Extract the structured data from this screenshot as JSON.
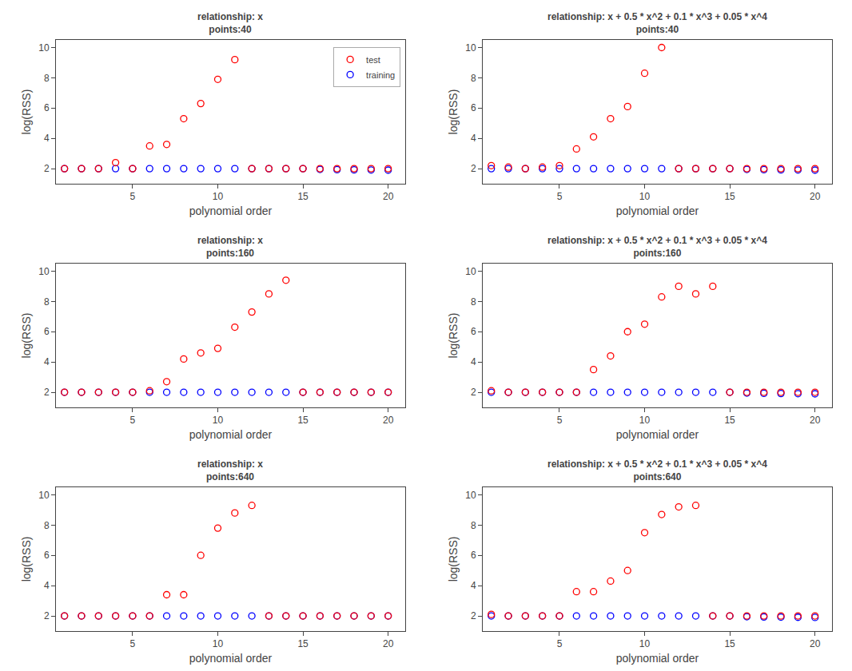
{
  "chart_data": [
    {
      "type": "scatter",
      "title": "relationship: x\npoints:40",
      "xlabel": "polynomial order",
      "ylabel": "log(RSS)",
      "x": [
        1,
        2,
        3,
        4,
        5,
        6,
        7,
        8,
        9,
        10,
        11,
        12,
        13,
        14,
        15,
        16,
        17,
        18,
        19,
        20
      ],
      "series": [
        {
          "name": "training",
          "color": "#0000FF",
          "marker": "circle-open",
          "values": [
            2.0,
            2.0,
            2.0,
            2.0,
            2.0,
            2.0,
            2.0,
            2.0,
            2.0,
            2.0,
            2.0,
            2.0,
            2.0,
            2.0,
            2.0,
            1.95,
            1.93,
            1.92,
            1.91,
            1.9
          ]
        },
        {
          "name": "test",
          "color": "#FF0000",
          "marker": "circle-open",
          "values": [
            2.0,
            2.0,
            2.0,
            2.4,
            2.0,
            3.5,
            3.6,
            5.3,
            6.3,
            7.9,
            9.2,
            2.0,
            2.0,
            2.0,
            2.0,
            2.0,
            2.0,
            2.0,
            2.0,
            2.0
          ]
        }
      ],
      "xlim": [
        0.5,
        21.0
      ],
      "ylim": [
        1.0,
        10.5
      ],
      "xticks": [
        5,
        10,
        15,
        20
      ],
      "yticks": [
        2,
        4,
        6,
        8,
        10
      ],
      "grid": false,
      "legend": "upper right"
    },
    {
      "type": "scatter",
      "title": "relationship: x + 0.5 * x^2 + 0.1 * x^3 + 0.05 * x^4\npoints:40",
      "xlabel": "polynomial order",
      "ylabel": "log(RSS)",
      "x": [
        1,
        2,
        3,
        4,
        5,
        6,
        7,
        8,
        9,
        10,
        11,
        12,
        13,
        14,
        15,
        16,
        17,
        18,
        19,
        20
      ],
      "series": [
        {
          "name": "training",
          "color": "#0000FF",
          "marker": "circle-open",
          "values": [
            2.0,
            2.0,
            2.0,
            2.0,
            2.0,
            2.0,
            2.0,
            2.0,
            2.0,
            2.0,
            2.0,
            2.0,
            2.0,
            2.0,
            2.0,
            1.95,
            1.93,
            1.92,
            1.91,
            1.9
          ]
        },
        {
          "name": "test",
          "color": "#FF0000",
          "marker": "circle-open",
          "values": [
            2.2,
            2.1,
            2.0,
            2.1,
            2.2,
            3.3,
            4.1,
            5.3,
            6.1,
            8.3,
            10.0,
            2.0,
            2.0,
            2.0,
            2.0,
            2.0,
            2.0,
            2.0,
            2.0,
            2.0
          ]
        }
      ],
      "xlim": [
        0.5,
        21.0
      ],
      "ylim": [
        1.0,
        10.5
      ],
      "xticks": [
        5,
        10,
        15,
        20
      ],
      "yticks": [
        2,
        4,
        6,
        8,
        10
      ],
      "grid": false
    },
    {
      "type": "scatter",
      "title": "relationship: x\npoints:160",
      "xlabel": "polynomial order",
      "ylabel": "log(RSS)",
      "x": [
        1,
        2,
        3,
        4,
        5,
        6,
        7,
        8,
        9,
        10,
        11,
        12,
        13,
        14,
        15,
        16,
        17,
        18,
        19,
        20
      ],
      "series": [
        {
          "name": "training",
          "color": "#0000FF",
          "marker": "circle-open",
          "values": [
            2.0,
            2.0,
            2.0,
            2.0,
            2.0,
            2.0,
            2.0,
            2.0,
            2.0,
            2.0,
            2.0,
            2.0,
            2.0,
            2.0,
            2.0,
            2.0,
            2.0,
            2.0,
            2.0,
            2.0
          ]
        },
        {
          "name": "test",
          "color": "#FF0000",
          "marker": "circle-open",
          "values": [
            2.0,
            2.0,
            2.0,
            2.0,
            2.0,
            2.1,
            2.7,
            4.2,
            4.6,
            4.9,
            6.3,
            7.3,
            8.5,
            9.4,
            2.0,
            2.0,
            2.0,
            2.0,
            2.0,
            2.0
          ]
        }
      ],
      "xlim": [
        0.5,
        21.0
      ],
      "ylim": [
        1.0,
        10.5
      ],
      "xticks": [
        5,
        10,
        15,
        20
      ],
      "yticks": [
        2,
        4,
        6,
        8,
        10
      ],
      "grid": false
    },
    {
      "type": "scatter",
      "title": "relationship: x + 0.5 * x^2 + 0.1 * x^3 + 0.05 * x^4\npoints:160",
      "xlabel": "polynomial order",
      "ylabel": "log(RSS)",
      "x": [
        1,
        2,
        3,
        4,
        5,
        6,
        7,
        8,
        9,
        10,
        11,
        12,
        13,
        14,
        15,
        16,
        17,
        18,
        19,
        20
      ],
      "series": [
        {
          "name": "training",
          "color": "#0000FF",
          "marker": "circle-open",
          "values": [
            2.0,
            2.0,
            2.0,
            2.0,
            2.0,
            2.0,
            2.0,
            2.0,
            2.0,
            2.0,
            2.0,
            2.0,
            2.0,
            2.0,
            2.0,
            1.95,
            1.93,
            1.92,
            1.91,
            1.9
          ]
        },
        {
          "name": "test",
          "color": "#FF0000",
          "marker": "circle-open",
          "values": [
            2.1,
            2.0,
            2.0,
            2.0,
            2.0,
            2.0,
            3.5,
            4.4,
            6.0,
            6.5,
            8.3,
            9.0,
            8.5,
            9.0,
            2.0,
            2.0,
            2.0,
            2.0,
            2.0,
            2.0
          ]
        }
      ],
      "xlim": [
        0.5,
        21.0
      ],
      "ylim": [
        1.0,
        10.5
      ],
      "xticks": [
        5,
        10,
        15,
        20
      ],
      "yticks": [
        2,
        4,
        6,
        8,
        10
      ],
      "grid": false
    },
    {
      "type": "scatter",
      "title": "relationship: x\npoints:640",
      "xlabel": "polynomial order",
      "ylabel": "log(RSS)",
      "x": [
        1,
        2,
        3,
        4,
        5,
        6,
        7,
        8,
        9,
        10,
        11,
        12,
        13,
        14,
        15,
        16,
        17,
        18,
        19,
        20
      ],
      "series": [
        {
          "name": "training",
          "color": "#0000FF",
          "marker": "circle-open",
          "values": [
            2.0,
            2.0,
            2.0,
            2.0,
            2.0,
            2.0,
            2.0,
            2.0,
            2.0,
            2.0,
            2.0,
            2.0,
            2.0,
            2.0,
            2.0,
            2.0,
            2.0,
            2.0,
            2.0,
            2.0
          ]
        },
        {
          "name": "test",
          "color": "#FF0000",
          "marker": "circle-open",
          "values": [
            2.0,
            2.0,
            2.0,
            2.0,
            2.0,
            2.0,
            3.4,
            3.4,
            6.0,
            7.8,
            8.8,
            9.3,
            2.0,
            2.0,
            2.0,
            2.0,
            2.0,
            2.0,
            2.0,
            2.0
          ]
        }
      ],
      "xlim": [
        0.5,
        21.0
      ],
      "ylim": [
        1.0,
        10.5
      ],
      "xticks": [
        5,
        10,
        15,
        20
      ],
      "yticks": [
        2,
        4,
        6,
        8,
        10
      ],
      "grid": false
    },
    {
      "type": "scatter",
      "title": "relationship: x + 0.5 * x^2 + 0.1 * x^3 + 0.05 * x^4\npoints:640",
      "xlabel": "polynomial order",
      "ylabel": "log(RSS)",
      "x": [
        1,
        2,
        3,
        4,
        5,
        6,
        7,
        8,
        9,
        10,
        11,
        12,
        13,
        14,
        15,
        16,
        17,
        18,
        19,
        20
      ],
      "series": [
        {
          "name": "training",
          "color": "#0000FF",
          "marker": "circle-open",
          "values": [
            2.0,
            2.0,
            2.0,
            2.0,
            2.0,
            2.0,
            2.0,
            2.0,
            2.0,
            2.0,
            2.0,
            2.0,
            2.0,
            2.0,
            2.0,
            1.95,
            1.93,
            1.92,
            1.91,
            1.9
          ]
        },
        {
          "name": "test",
          "color": "#FF0000",
          "marker": "circle-open",
          "values": [
            2.1,
            2.0,
            2.0,
            2.0,
            2.0,
            3.6,
            3.6,
            4.3,
            5.0,
            7.5,
            8.7,
            9.2,
            9.3,
            2.0,
            2.0,
            2.0,
            2.0,
            2.0,
            2.0,
            2.0
          ]
        }
      ],
      "xlim": [
        0.5,
        21.0
      ],
      "ylim": [
        1.0,
        10.5
      ],
      "xticks": [
        5,
        10,
        15,
        20
      ],
      "yticks": [
        2,
        4,
        6,
        8,
        10
      ],
      "grid": false
    }
  ]
}
